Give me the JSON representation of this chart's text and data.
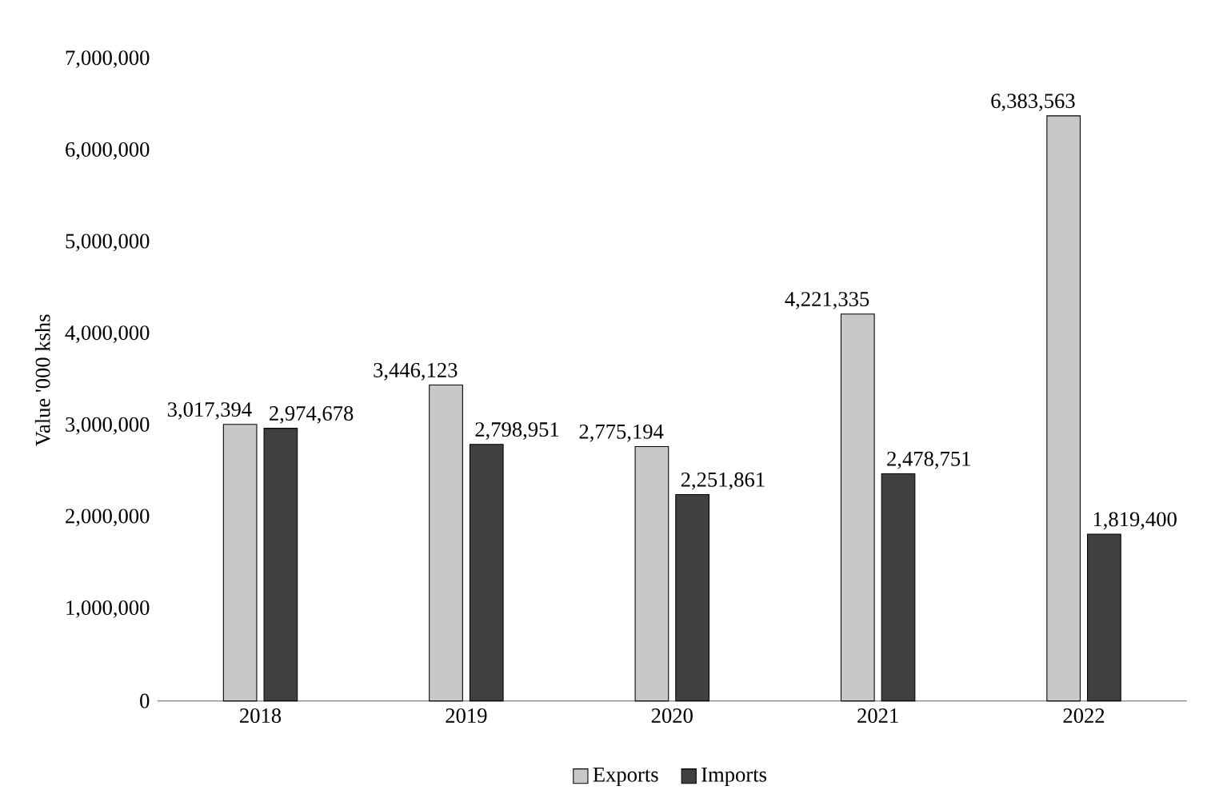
{
  "chart_data": {
    "type": "bar",
    "ylabel": "Value '000 kshs",
    "categories": [
      "2018",
      "2019",
      "2020",
      "2021",
      "2022"
    ],
    "series": [
      {
        "name": "Exports",
        "color": "#c8c8c8",
        "values": [
          3017394,
          3446123,
          2775194,
          4221335,
          6383563
        ],
        "value_labels": [
          "3,017,394",
          "3,446,123",
          "2,775,194",
          "4,221,335",
          "6,383,563"
        ]
      },
      {
        "name": "Imports",
        "color": "#404040",
        "values": [
          2974678,
          2798951,
          2251861,
          2478751,
          1819400
        ],
        "value_labels": [
          "2,974,678",
          "2,798,951",
          "2,251,861",
          "2,478,751",
          "1,819,400"
        ]
      }
    ],
    "ylim": [
      0,
      7000000
    ],
    "yticks": [
      0,
      {
        "value": 1000000,
        "label": "1,000,000"
      },
      {
        "value": 2000000,
        "label": "2,000,000"
      },
      {
        "value": 3000000,
        "label": "3,000,000"
      },
      {
        "value": 4000000,
        "label": "4,000,000"
      },
      {
        "value": 5000000,
        "label": "5,000,000"
      },
      {
        "value": 6000000,
        "label": "6,000,000"
      },
      {
        "value": 7000000,
        "label": "7,000,000"
      }
    ],
    "grid": false,
    "legend": "bottom"
  }
}
